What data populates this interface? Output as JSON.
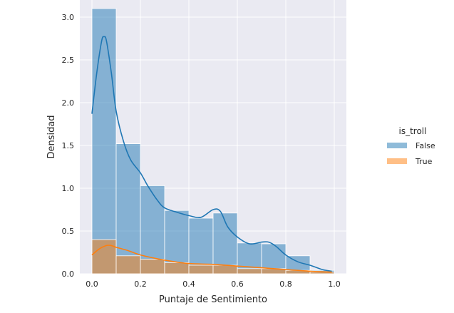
{
  "chart_data": {
    "type": "histogram",
    "xlabel": "Puntaje de Sentimiento",
    "ylabel": "Densidad",
    "xlim": [
      -0.05,
      1.05
    ],
    "ylim": [
      0,
      3.2
    ],
    "x_ticks": [
      "0.0",
      "0.2",
      "0.4",
      "0.6",
      "0.8",
      "1.0"
    ],
    "y_ticks": [
      "0.0",
      "0.5",
      "1.0",
      "1.5",
      "2.0",
      "2.5",
      "3.0"
    ],
    "grid": true,
    "legend": {
      "title": "is_troll",
      "placement": "right",
      "entries": [
        "False",
        "True"
      ]
    },
    "bin_edges": [
      0.0,
      0.1,
      0.2,
      0.3,
      0.4,
      0.5,
      0.6,
      0.7,
      0.8,
      0.9,
      1.0
    ],
    "series": [
      {
        "name": "False",
        "color": "#1f77b4",
        "values": [
          3.1,
          1.52,
          1.03,
          0.74,
          0.65,
          0.71,
          0.36,
          0.35,
          0.21,
          0.04
        ],
        "kde": {
          "x": [
            0.0,
            0.02,
            0.04,
            0.05,
            0.06,
            0.08,
            0.1,
            0.13,
            0.16,
            0.2,
            0.23,
            0.27,
            0.3,
            0.35,
            0.4,
            0.45,
            0.5,
            0.53,
            0.56,
            0.6,
            0.65,
            0.7,
            0.73,
            0.76,
            0.8,
            0.85,
            0.9,
            0.95,
            0.99
          ],
          "y": [
            1.87,
            2.35,
            2.72,
            2.77,
            2.72,
            2.35,
            1.9,
            1.55,
            1.33,
            1.18,
            1.03,
            0.86,
            0.77,
            0.72,
            0.68,
            0.66,
            0.75,
            0.73,
            0.55,
            0.43,
            0.35,
            0.37,
            0.37,
            0.32,
            0.22,
            0.14,
            0.1,
            0.05,
            0.03
          ]
        }
      },
      {
        "name": "True",
        "color": "#ff7f0e",
        "values": [
          0.4,
          0.21,
          0.17,
          0.13,
          0.1,
          0.1,
          0.06,
          0.06,
          0.04,
          0.02
        ],
        "kde": {
          "x": [
            0.0,
            0.03,
            0.06,
            0.08,
            0.1,
            0.15,
            0.2,
            0.3,
            0.4,
            0.5,
            0.6,
            0.7,
            0.8,
            0.9,
            0.99
          ],
          "y": [
            0.22,
            0.29,
            0.33,
            0.33,
            0.31,
            0.27,
            0.22,
            0.16,
            0.12,
            0.11,
            0.09,
            0.07,
            0.05,
            0.03,
            0.02
          ]
        }
      }
    ]
  }
}
